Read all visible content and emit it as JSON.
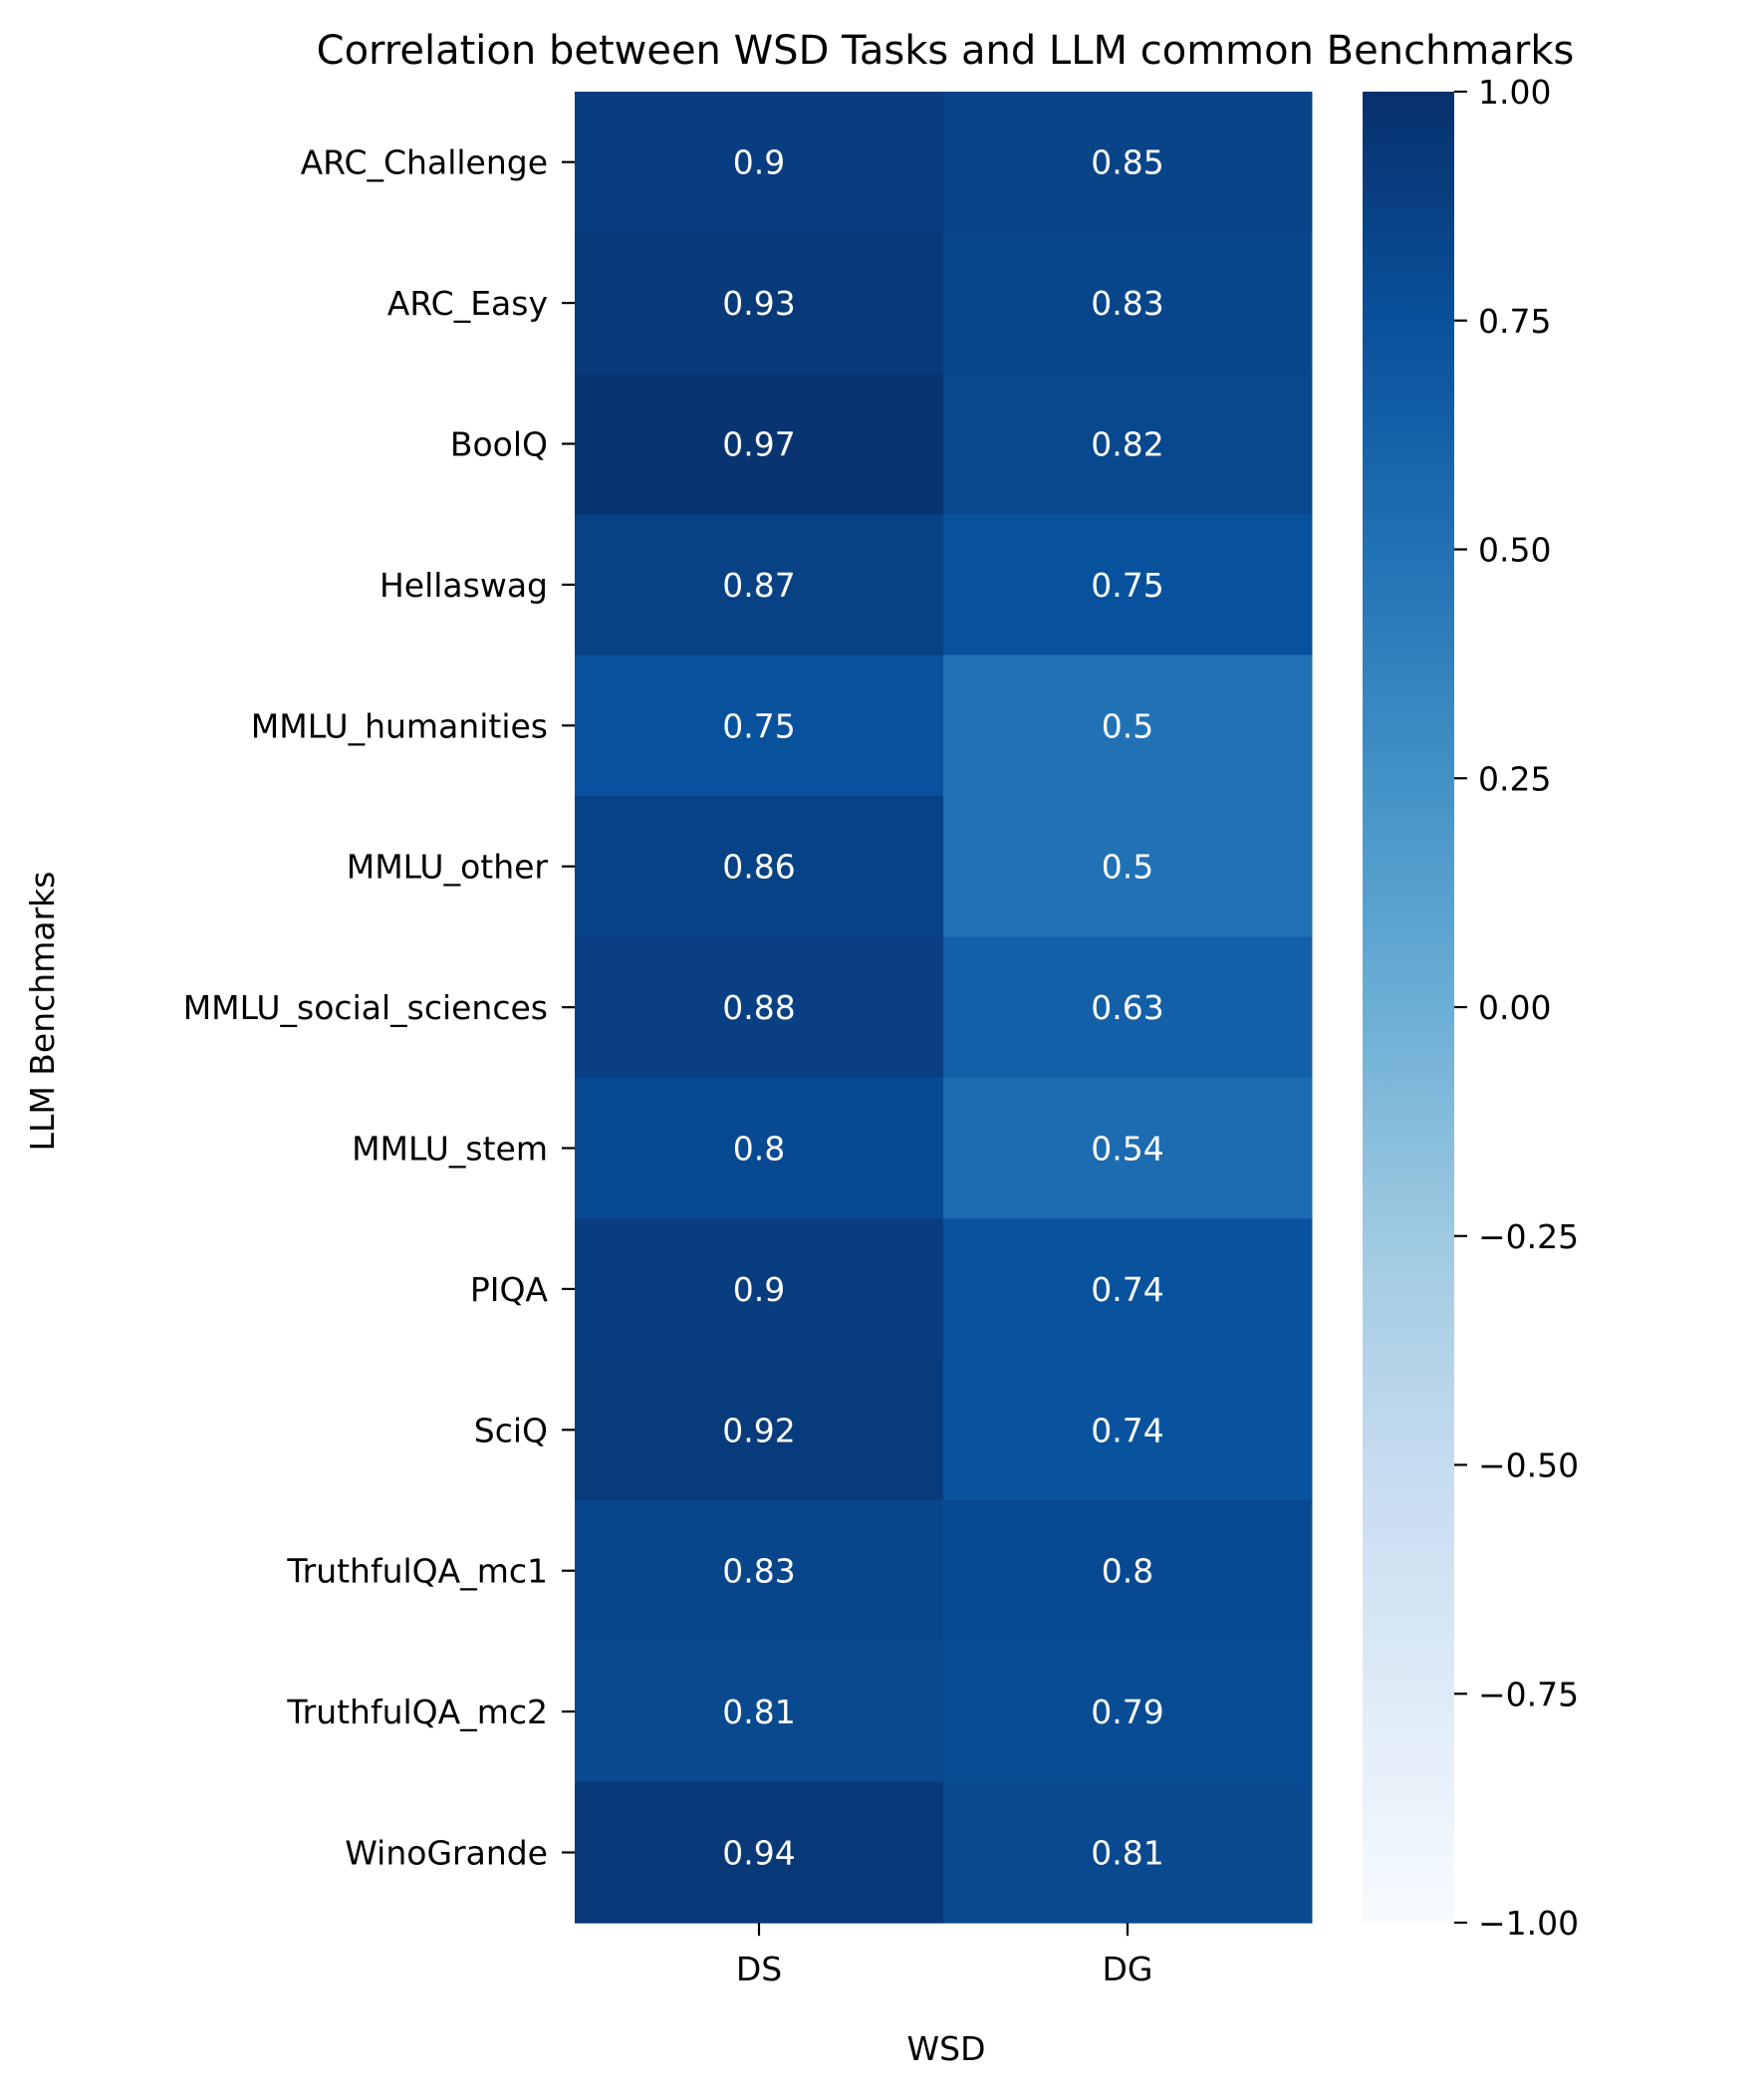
{
  "chart_data": {
    "type": "heatmap",
    "title": "Correlation between WSD Tasks and LLM common Benchmarks",
    "xlabel": "WSD",
    "ylabel": "LLM Benchmarks",
    "columns": [
      "DS",
      "DG"
    ],
    "rows": [
      "ARC_Challenge",
      "ARC_Easy",
      "BoolQ",
      "Hellaswag",
      "MMLU_humanities",
      "MMLU_other",
      "MMLU_social_sciences",
      "MMLU_stem",
      "PIQA",
      "SciQ",
      "TruthfulQA_mc1",
      "TruthfulQA_mc2",
      "WinoGrande"
    ],
    "values": [
      [
        0.9,
        0.85
      ],
      [
        0.93,
        0.83
      ],
      [
        0.97,
        0.82
      ],
      [
        0.87,
        0.75
      ],
      [
        0.75,
        0.5
      ],
      [
        0.86,
        0.5
      ],
      [
        0.88,
        0.63
      ],
      [
        0.8,
        0.54
      ],
      [
        0.9,
        0.74
      ],
      [
        0.92,
        0.74
      ],
      [
        0.83,
        0.8
      ],
      [
        0.81,
        0.79
      ],
      [
        0.94,
        0.81
      ]
    ],
    "colormap": "Blues",
    "vmin": -1.0,
    "vmax": 1.0,
    "colorbar_ticks": [
      "1.00",
      "0.75",
      "0.50",
      "0.25",
      "0.00",
      "−0.25",
      "−0.50",
      "−0.75",
      "−1.00"
    ],
    "colorbar_tick_values": [
      1.0,
      0.75,
      0.5,
      0.25,
      0.0,
      -0.25,
      -0.5,
      -0.75,
      -1.0
    ],
    "grid": false,
    "legend": "colorbar-right"
  }
}
